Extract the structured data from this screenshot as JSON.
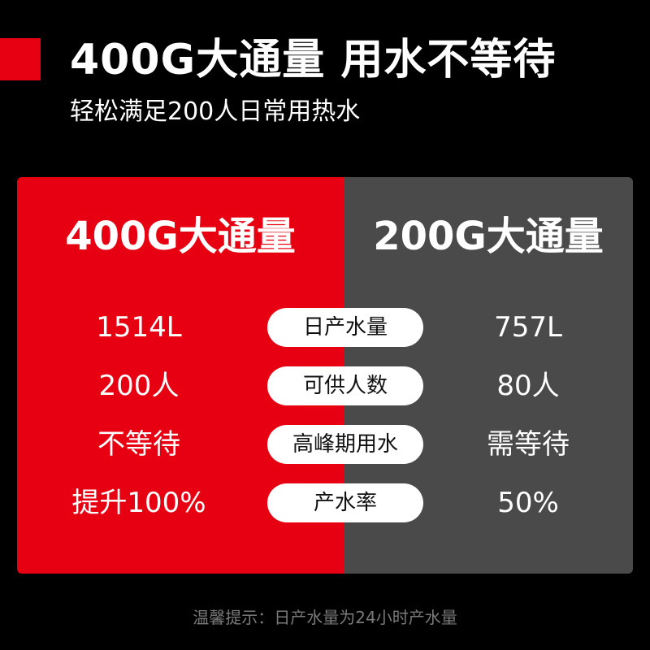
{
  "header": {
    "title": "400G大通量 用水不等待",
    "subtitle": "轻松满足200人日常用热水"
  },
  "comparison": {
    "left_title": "400G大通量",
    "right_title": "200G大通量",
    "rows": [
      {
        "label": "日产水量",
        "left": "1514L",
        "right": "757L"
      },
      {
        "label": "可供人数",
        "left": "200人",
        "right": "80人"
      },
      {
        "label": "高峰期用水",
        "left": "不等待",
        "right": "需等待"
      },
      {
        "label": "产水率",
        "left": "提升100%",
        "right": "50%"
      }
    ]
  },
  "footnote": "温馨提示：日产水量为24小时产水量",
  "colors": {
    "accent": "#e60012",
    "secondary_panel": "#4a4a4a",
    "background": "#000000"
  }
}
